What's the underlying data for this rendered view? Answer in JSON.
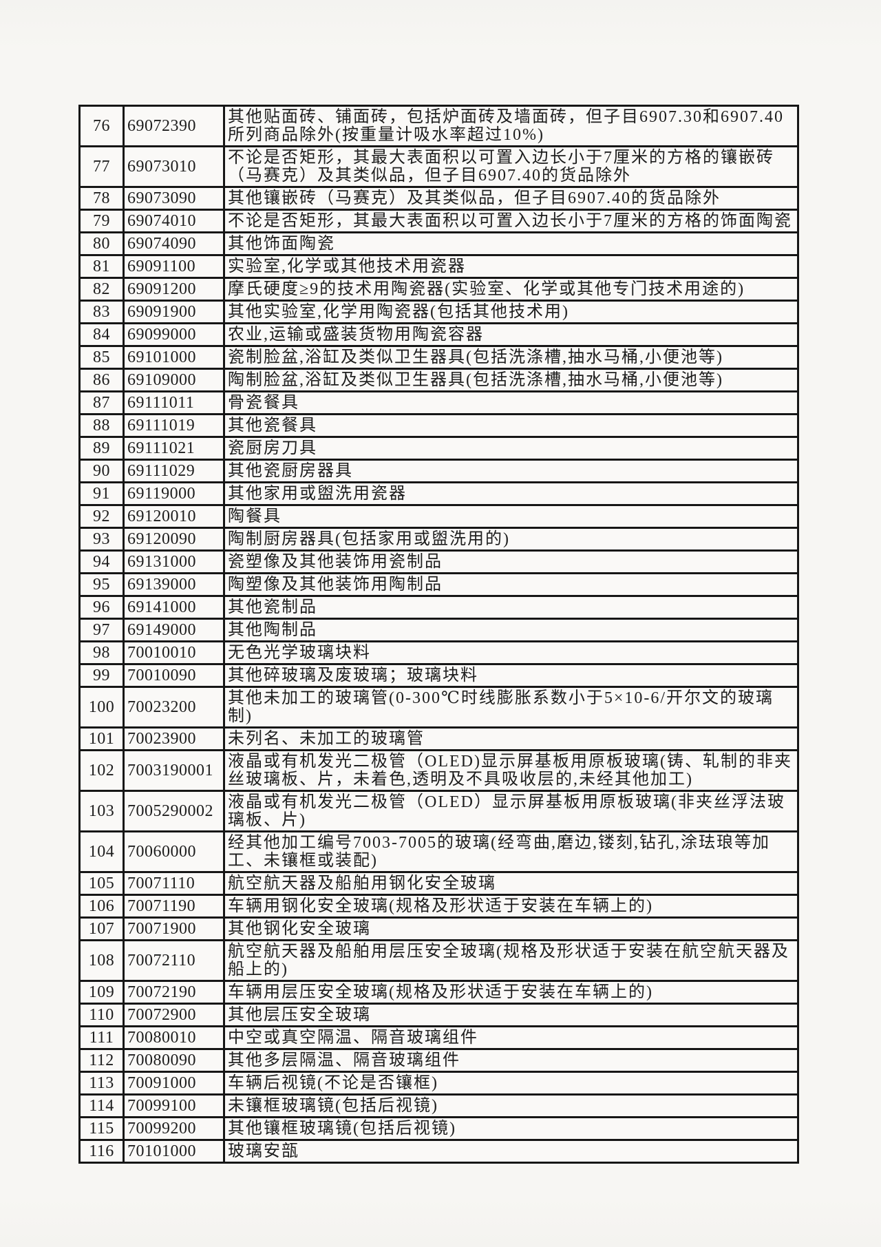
{
  "document": {
    "kind": "scanned tariff commodity list page",
    "language": "zh-CN",
    "colors": {
      "page_background": "#f6f5f2",
      "table_background": "#faf9f7",
      "border": "#161616",
      "ink": "#1d1d1d"
    }
  },
  "table": {
    "rows": [
      {
        "no": "76",
        "code": "69072390",
        "desc": "其他贴面砖、铺面砖，包括炉面砖及墙面砖，但子目6907.30和6907.40所列商品除外(按重量计吸水率超过10%)"
      },
      {
        "no": "77",
        "code": "69073010",
        "desc": "不论是否矩形，其最大表面积以可置入边长小于7厘米的方格的镶嵌砖（马赛克）及其类似品，但子目6907.40的货品除外"
      },
      {
        "no": "78",
        "code": "69073090",
        "desc": "其他镶嵌砖（马赛克）及其类似品，但子目6907.40的货品除外"
      },
      {
        "no": "79",
        "code": "69074010",
        "desc": "不论是否矩形，其最大表面积以可置入边长小于7厘米的方格的饰面陶瓷"
      },
      {
        "no": "80",
        "code": "69074090",
        "desc": "其他饰面陶瓷"
      },
      {
        "no": "81",
        "code": "69091100",
        "desc": "实验室,化学或其他技术用瓷器"
      },
      {
        "no": "82",
        "code": "69091200",
        "desc": "摩氏硬度≥9的技术用陶瓷器(实验室、化学或其他专门技术用途的)"
      },
      {
        "no": "83",
        "code": "69091900",
        "desc": "其他实验室,化学用陶瓷器(包括其他技术用)"
      },
      {
        "no": "84",
        "code": "69099000",
        "desc": "农业,运输或盛装货物用陶瓷容器"
      },
      {
        "no": "85",
        "code": "69101000",
        "desc": "瓷制脸盆,浴缸及类似卫生器具(包括洗涤槽,抽水马桶,小便池等)"
      },
      {
        "no": "86",
        "code": "69109000",
        "desc": "陶制脸盆,浴缸及类似卫生器具(包括洗涤槽,抽水马桶,小便池等)"
      },
      {
        "no": "87",
        "code": "69111011",
        "desc": "骨瓷餐具"
      },
      {
        "no": "88",
        "code": "69111019",
        "desc": "其他瓷餐具"
      },
      {
        "no": "89",
        "code": "69111021",
        "desc": "瓷厨房刀具"
      },
      {
        "no": "90",
        "code": "69111029",
        "desc": "其他瓷厨房器具"
      },
      {
        "no": "91",
        "code": "69119000",
        "desc": "其他家用或盥洗用瓷器"
      },
      {
        "no": "92",
        "code": "69120010",
        "desc": "陶餐具"
      },
      {
        "no": "93",
        "code": "69120090",
        "desc": "陶制厨房器具(包括家用或盥洗用的)"
      },
      {
        "no": "94",
        "code": "69131000",
        "desc": "瓷塑像及其他装饰用瓷制品"
      },
      {
        "no": "95",
        "code": "69139000",
        "desc": "陶塑像及其他装饰用陶制品"
      },
      {
        "no": "96",
        "code": "69141000",
        "desc": "其他瓷制品"
      },
      {
        "no": "97",
        "code": "69149000",
        "desc": "其他陶制品"
      },
      {
        "no": "98",
        "code": "70010010",
        "desc": "无色光学玻璃块料"
      },
      {
        "no": "99",
        "code": "70010090",
        "desc": "其他碎玻璃及废玻璃；玻璃块料"
      },
      {
        "no": "100",
        "code": "70023200",
        "desc": "其他未加工的玻璃管(0-300℃时线膨胀系数小于5×10-6/开尔文的玻璃制)"
      },
      {
        "no": "101",
        "code": "70023900",
        "desc": "未列名、未加工的玻璃管"
      },
      {
        "no": "102",
        "code": "7003190001",
        "desc": "液晶或有机发光二极管（OLED)显示屏基板用原板玻璃(铸、轧制的非夹丝玻璃板、片，未着色,透明及不具吸收层的,未经其他加工)"
      },
      {
        "no": "103",
        "code": "7005290002",
        "desc": "液晶或有机发光二极管（OLED）显示屏基板用原板玻璃(非夹丝浮法玻璃板、片)"
      },
      {
        "no": "104",
        "code": "70060000",
        "desc": "经其他加工编号7003-7005的玻璃(经弯曲,磨边,镂刻,钻孔,涂珐琅等加工、未镶框或装配)"
      },
      {
        "no": "105",
        "code": "70071110",
        "desc": "航空航天器及船舶用钢化安全玻璃"
      },
      {
        "no": "106",
        "code": "70071190",
        "desc": "车辆用钢化安全玻璃(规格及形状适于安装在车辆上的)"
      },
      {
        "no": "107",
        "code": "70071900",
        "desc": "其他钢化安全玻璃"
      },
      {
        "no": "108",
        "code": "70072110",
        "desc": "航空航天器及船舶用层压安全玻璃(规格及形状适于安装在航空航天器及船上的)"
      },
      {
        "no": "109",
        "code": "70072190",
        "desc": "车辆用层压安全玻璃(规格及形状适于安装在车辆上的)"
      },
      {
        "no": "110",
        "code": "70072900",
        "desc": "其他层压安全玻璃"
      },
      {
        "no": "111",
        "code": "70080010",
        "desc": "中空或真空隔温、隔音玻璃组件"
      },
      {
        "no": "112",
        "code": "70080090",
        "desc": "其他多层隔温、隔音玻璃组件"
      },
      {
        "no": "113",
        "code": "70091000",
        "desc": "车辆后视镜(不论是否镶框)"
      },
      {
        "no": "114",
        "code": "70099100",
        "desc": "未镶框玻璃镜(包括后视镜)"
      },
      {
        "no": "115",
        "code": "70099200",
        "desc": "其他镶框玻璃镜(包括后视镜)"
      },
      {
        "no": "116",
        "code": "70101000",
        "desc": "玻璃安瓿"
      }
    ]
  }
}
